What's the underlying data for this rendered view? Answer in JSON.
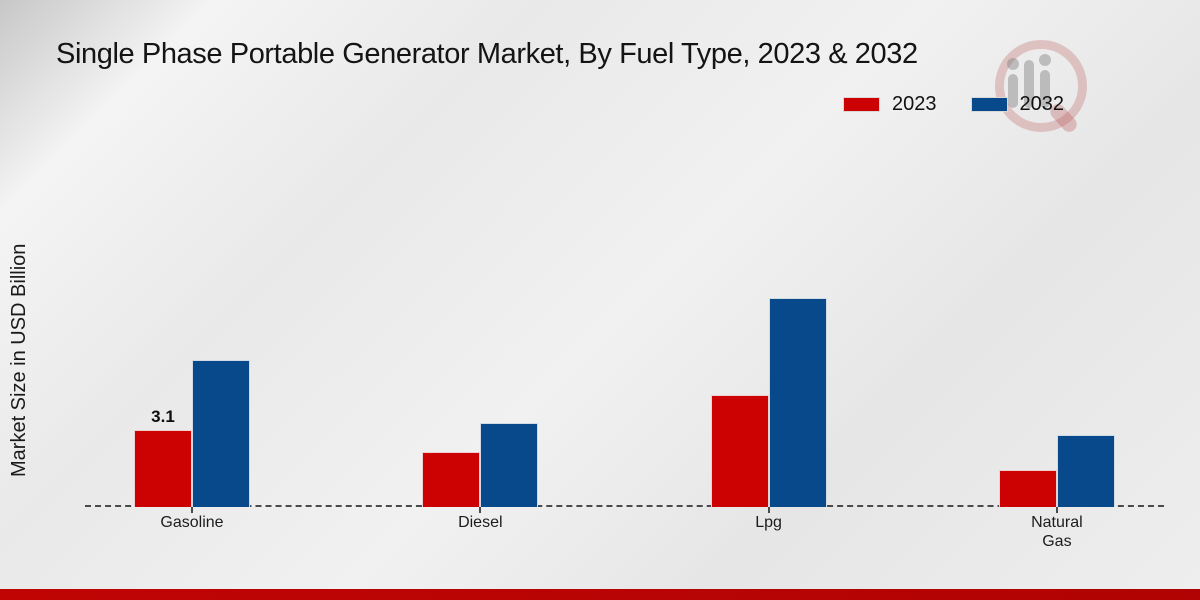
{
  "page": {
    "title": "Single Phase Portable Generator Market, By Fuel Type, 2023 & 2032",
    "y_axis_label": "Market Size in USD Billion"
  },
  "legend": {
    "items": [
      {
        "label": "2023",
        "color": "#cc0101"
      },
      {
        "label": "2032",
        "color": "#07498a"
      }
    ]
  },
  "colors": {
    "series_2023": "#cc0101",
    "series_2032": "#07498a",
    "bottom_bar": "#b80303",
    "axis_line": "#4a4a4a",
    "background": "#e9e9e9"
  },
  "watermark": {
    "icon": "mrfr-magnifier-logo"
  },
  "chart_data": {
    "type": "bar",
    "title": "Single Phase Portable Generator Market, By Fuel Type, 2023 & 2032",
    "xlabel": "",
    "ylabel": "Market Size in USD Billion",
    "categories": [
      "Gasoline",
      "Diesel",
      "Lpg",
      "Natural Gas"
    ],
    "series": [
      {
        "name": "2023",
        "color": "#cc0101",
        "values": [
          3.1,
          2.2,
          4.5,
          1.5
        ]
      },
      {
        "name": "2032",
        "color": "#07498a",
        "values": [
          5.9,
          3.4,
          8.4,
          2.9
        ]
      }
    ],
    "data_labels": [
      {
        "category": "Gasoline",
        "series": "2023",
        "text": "3.1"
      }
    ],
    "ylim": [
      0,
      14.4
    ],
    "grid": false,
    "legend_position": "top-right",
    "axis_style": "dashed-baseline-only"
  }
}
